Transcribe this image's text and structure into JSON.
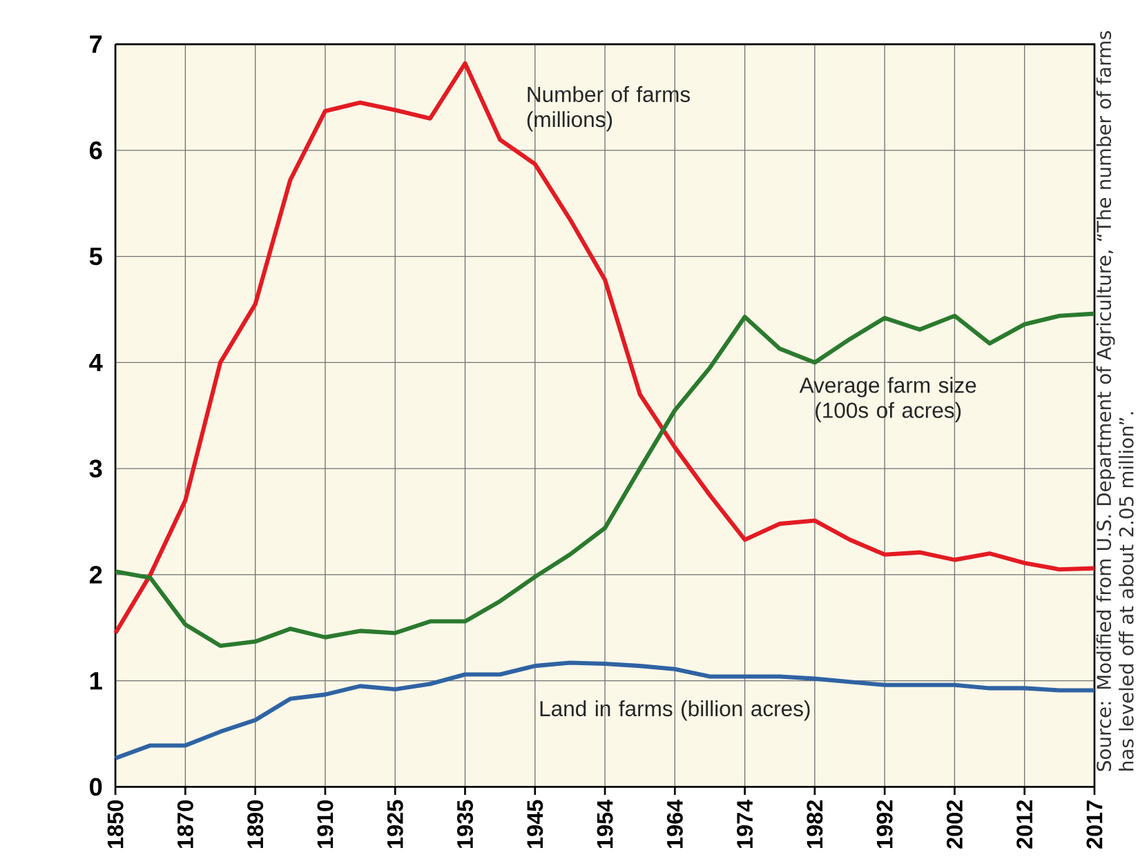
{
  "chart_data": {
    "type": "line",
    "categories": [
      "1850",
      null,
      "1870",
      null,
      "1890",
      null,
      "1910",
      null,
      "1925",
      null,
      "1935",
      null,
      "1945",
      null,
      "1954",
      null,
      "1964",
      null,
      "1974",
      null,
      "1982",
      null,
      "1992",
      null,
      "2002",
      null,
      "2012",
      null,
      "2017"
    ],
    "series": [
      {
        "name": "Number of farms (millions)",
        "color": "#e31b23",
        "values": [
          1.45,
          2.0,
          2.7,
          4.0,
          4.55,
          5.72,
          6.37,
          6.45,
          6.38,
          6.3,
          6.82,
          6.1,
          5.87,
          5.35,
          4.78,
          3.7,
          3.2,
          2.75,
          2.33,
          2.48,
          2.51,
          2.33,
          2.19,
          2.21,
          2.14,
          2.2,
          2.11,
          2.05,
          2.06
        ]
      },
      {
        "name": "Average farm size (100s of acres)",
        "color": "#2b7a2e",
        "values": [
          2.03,
          1.97,
          1.53,
          1.33,
          1.37,
          1.49,
          1.41,
          1.47,
          1.45,
          1.56,
          1.56,
          1.75,
          1.98,
          2.19,
          2.44,
          3.0,
          3.55,
          3.95,
          4.43,
          4.13,
          4.0,
          4.22,
          4.42,
          4.31,
          4.44,
          4.18,
          4.36,
          4.44,
          4.46
        ]
      },
      {
        "name": "Land in farms (billion acres)",
        "color": "#2f63a3",
        "values": [
          0.27,
          0.39,
          0.39,
          0.52,
          0.63,
          0.83,
          0.87,
          0.95,
          0.92,
          0.97,
          1.06,
          1.06,
          1.14,
          1.17,
          1.16,
          1.14,
          1.11,
          1.04,
          1.04,
          1.04,
          1.02,
          0.99,
          0.96,
          0.96,
          0.96,
          0.93,
          0.93,
          0.91,
          0.91
        ]
      }
    ],
    "ylim": [
      0,
      7
    ],
    "yticks": [
      0,
      1,
      2,
      3,
      4,
      5,
      6,
      7
    ],
    "grid": true,
    "marker": "none",
    "line_style": "solid",
    "annotations": [
      "Source: Modified from U.S. Department of Agriculture, “The number of farms has leveled off at about 2.05 million”."
    ]
  }
}
